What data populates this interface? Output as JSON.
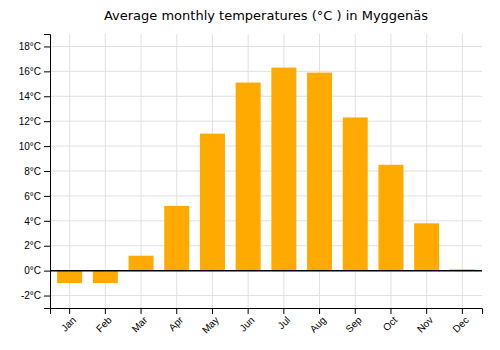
{
  "chart_data": {
    "type": "bar",
    "title": "Average monthly temperatures (°C ) in Myggenäs",
    "categories": [
      "Jan",
      "Feb",
      "Mar",
      "Apr",
      "May",
      "Jun",
      "Jul",
      "Aug",
      "Sep",
      "Oct",
      "Nov",
      "Dec"
    ],
    "values": [
      -1.0,
      -1.0,
      1.2,
      5.2,
      11.0,
      15.1,
      16.3,
      15.9,
      12.3,
      8.5,
      3.8,
      0.1
    ],
    "color": "#FFAA00",
    "ylim": [
      -3,
      19
    ],
    "yticks": [
      {
        "value": -2,
        "label": "-2°C"
      },
      {
        "value": 0,
        "label": "0°C"
      },
      {
        "value": 2,
        "label": "2°C"
      },
      {
        "value": 4,
        "label": "4°C"
      },
      {
        "value": 6,
        "label": "6°C"
      },
      {
        "value": 8,
        "label": "8°C"
      },
      {
        "value": 10,
        "label": "10°C"
      },
      {
        "value": 12,
        "label": "12°C"
      },
      {
        "value": 14,
        "label": "14°C"
      },
      {
        "value": 16,
        "label": "16°C"
      },
      {
        "value": 18,
        "label": "18°C"
      }
    ],
    "grid": true
  }
}
